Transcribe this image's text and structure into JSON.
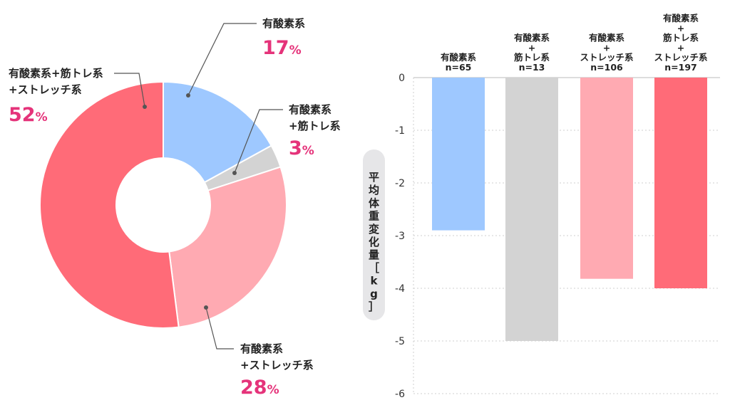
{
  "chart_data": [
    {
      "type": "pie",
      "donut": true,
      "slices": [
        {
          "label_lines": [
            "有酸素系"
          ],
          "value": 17,
          "pct_label": "17",
          "color": "#9ec8ff"
        },
        {
          "label_lines": [
            "有酸素系",
            "+筋トレ系"
          ],
          "value": 3,
          "pct_label": "3",
          "color": "#d3d3d3"
        },
        {
          "label_lines": [
            "有酸素系",
            "+ストレッチ系"
          ],
          "value": 28,
          "pct_label": "28",
          "color": "#ffaab2"
        },
        {
          "label_lines": [
            "有酸素系+筋トレ系",
            "+ストレッチ系"
          ],
          "value": 52,
          "pct_label": "52",
          "color": "#ff6b78"
        }
      ],
      "pct_unit": "%"
    },
    {
      "type": "bar",
      "ylabel": "平均体重変化量［kg］",
      "ylim": [
        -6,
        0
      ],
      "yticks": [
        0,
        -1,
        -2,
        -3,
        -4,
        -5,
        -6
      ],
      "grid": true,
      "categories": [
        {
          "label_lines": [
            "有酸素系"
          ],
          "n_label": "n=65",
          "value": -2.9,
          "color": "#9ec8ff"
        },
        {
          "label_lines": [
            "有酸素系",
            "+",
            "筋トレ系"
          ],
          "n_label": "n=13",
          "value": -5.0,
          "color": "#d3d3d3"
        },
        {
          "label_lines": [
            "有酸素系",
            "+",
            "ストレッチ系"
          ],
          "n_label": "n=106",
          "value": -3.82,
          "color": "#ffaab2"
        },
        {
          "label_lines": [
            "有酸素系",
            "+",
            "筋トレ系",
            "+",
            "ストレッチ系"
          ],
          "n_label": "n=197",
          "value": -4.0,
          "color": "#ff6b78"
        }
      ]
    }
  ]
}
